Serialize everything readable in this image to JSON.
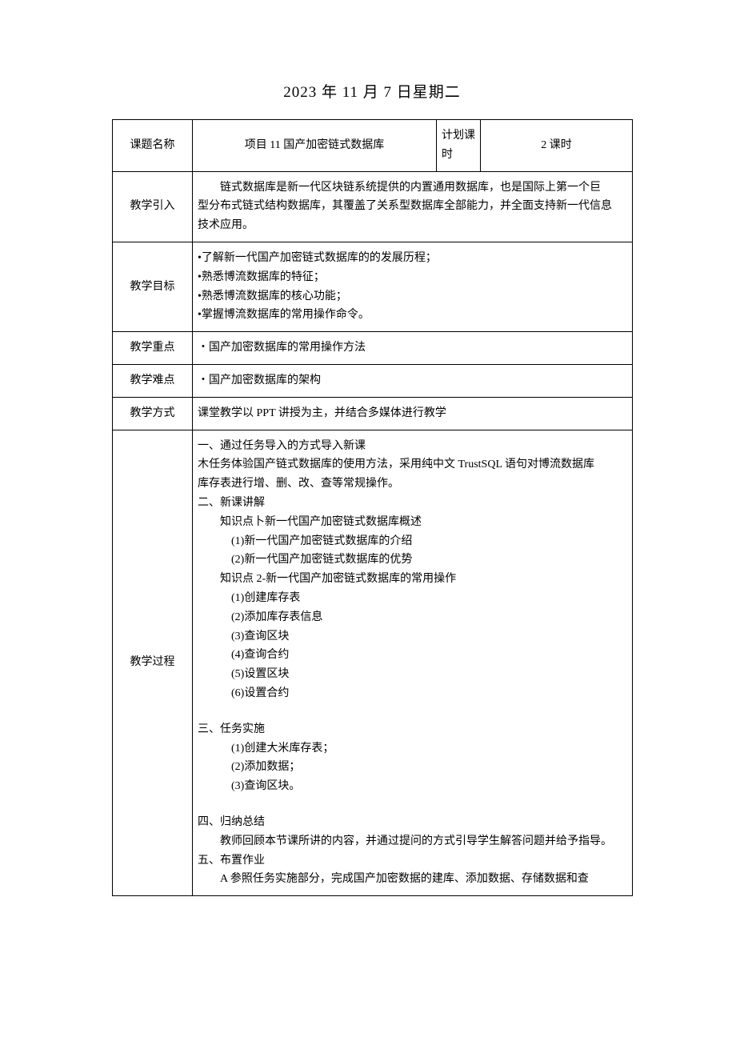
{
  "title": "2023 年 11 月 7 日星期二",
  "row1": {
    "label_topic": "课题名称",
    "topic_value": "项目 11 国产加密链式数据库",
    "label_hours": "计划课时",
    "hours_value": "2 课时"
  },
  "row2": {
    "label": "教学引入",
    "content_line1": "链式数据库是新一代区块链系统提供的内置通用数据库，也是国际上第一个巨",
    "content_line2": "型分布式链式结构数据库，其覆盖了关系型数据库全部能力，并全面支持新一代信息",
    "content_line3": "技术应用。"
  },
  "row3": {
    "label": "教学目标",
    "l1": "•了解新一代国产加密链式数据库的的发展历程；",
    "l2": "•熟悉博流数据库的特征；",
    "l3": "•熟悉博流数据库的核心功能；",
    "l4": "•掌握博流数据库的常用操作命令。"
  },
  "row4": {
    "label": "教学重点",
    "content": "・国产加密数据库的常用操作方法"
  },
  "row5": {
    "label": "教学难点",
    "content": "・国产加密数据库的架构"
  },
  "row6": {
    "label": "教学方式",
    "content": "课堂教学以 PPT 讲授为主，并结合多媒体进行教学"
  },
  "row7": {
    "label": "教学过程",
    "p1": "一、通过任务导入的方式导入新课",
    "p2": "木任务体验国产链式数据库的使用方法，采用纯中文 TrustSQL 语句对博流数据库",
    "p3": "库存表进行增、删、改、查等常规操作。",
    "p4": "二、新课讲解",
    "p5": "知识点卜新一代国产加密链式数据库概述",
    "p6": "(1)新一代国产加密链式数据库的介绍",
    "p7": "(2)新一代国产加密链式数据库的优势",
    "p8": "知识点 2-新一代国产加密链式数据库的常用操作",
    "p9": "(1)创建库存表",
    "p10": "(2)添加库存表信息",
    "p11": "(3)查询区块",
    "p12": "(4)查询合约",
    "p13": "(5)设置区块",
    "p14": "(6)设置合约",
    "p15": "三、任务实施",
    "p16": "(1)创建大米库存表；",
    "p17": "(2)添加数据；",
    "p18": "(3)查询区块。",
    "p19": "四、归纳总结",
    "p20": "教师回顾本节课所讲的内容，并通过提问的方式引导学生解答问题并给予指导。",
    "p21": "五、布置作业",
    "p22": "A 参照任务实施部分，完成国产加密数据的建库、添加数据、存储数据和查"
  }
}
